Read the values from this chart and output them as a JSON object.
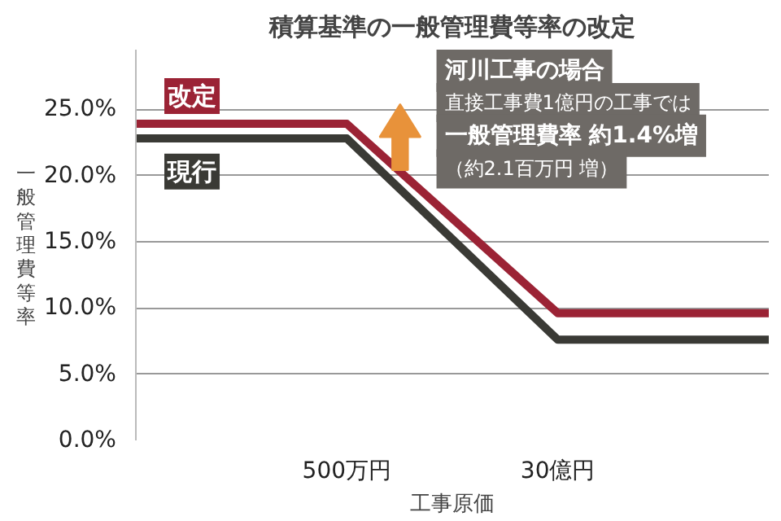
{
  "chart_data": {
    "type": "line",
    "title": "積算基準の一般管理費等率の改定",
    "xlabel": "工事原価",
    "ylabel": "一般管理費等率",
    "categories": [
      null,
      "500万円",
      "30億円",
      null
    ],
    "series": [
      {
        "name": "改定",
        "color": "#9b2335",
        "values": [
          23.9,
          23.9,
          9.6,
          9.6
        ]
      },
      {
        "name": "現行",
        "color": "#3a3a35",
        "values": [
          22.8,
          22.8,
          7.6,
          7.6
        ]
      }
    ],
    "ylim": [
      0,
      29.5
    ],
    "yticks": [
      {
        "value": 0,
        "label": "0.0%"
      },
      {
        "value": 5,
        "label": "5.0%"
      },
      {
        "value": 10,
        "label": "10.0%"
      },
      {
        "value": 15,
        "label": "15.0%"
      },
      {
        "value": 20,
        "label": "20.0%"
      },
      {
        "value": 25,
        "label": "25.0%"
      }
    ],
    "grid": "y",
    "legend": false,
    "line_style": "solid",
    "marker": "none",
    "annotations": [
      "河川工事の場合",
      "直接工事費1億円の工事では",
      "一般管理費率 約1.4%増",
      "（約2.1百万円 増）"
    ]
  }
}
